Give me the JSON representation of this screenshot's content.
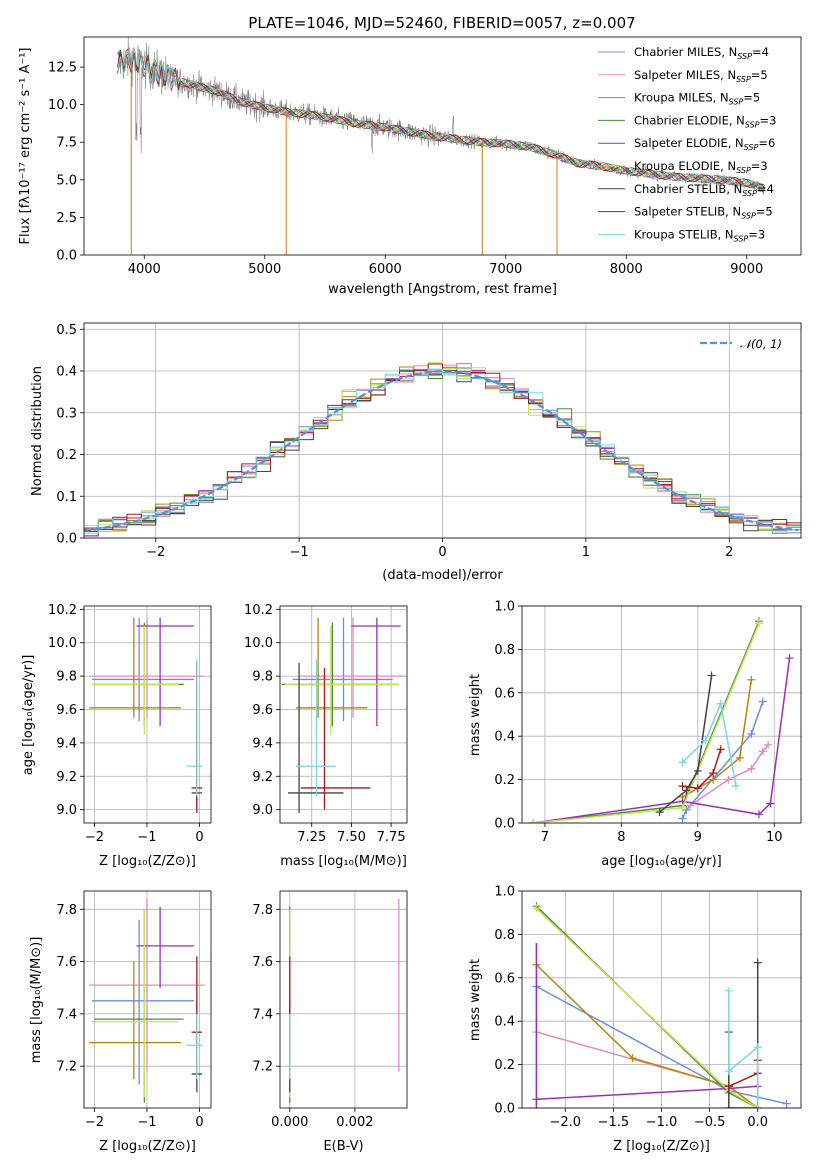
{
  "title": "PLATE=1046, MJD=52460, FIBERID=0057, z=0.007",
  "colors": {
    "Chabrier MILES": "#6a8fdc",
    "Salpeter MILES": "#e48bbd",
    "Kroupa MILES": "#b8860b",
    "Chabrier ELODIE": "#4b8b3b",
    "Salpeter ELODIE": "#9b30b5",
    "Kroupa ELODIE": "#c6e05a",
    "Chabrier STELIB": "#444444",
    "Salpeter STELIB": "#b01818",
    "Kroupa STELIB": "#7ad8e0",
    "data": "#808080",
    "orange": "#e07820"
  },
  "chart_data": [
    {
      "id": "spectrum",
      "type": "line",
      "title": "PLATE=1046, MJD=52460, FIBERID=0057, z=0.007",
      "xlabel": "wavelength [Angstrom, rest frame]",
      "ylabel": "Flux [fλ10⁻¹⁷ erg cm⁻² s⁻¹ A⁻¹]",
      "xlim": [
        3500,
        9450
      ],
      "ylim": [
        0,
        14.5
      ],
      "xticks": [
        4000,
        5000,
        6000,
        7000,
        8000,
        9000
      ],
      "yticks": [
        0.0,
        2.5,
        5.0,
        7.5,
        10.0,
        12.5
      ],
      "legend_position": "upper right",
      "legend": [
        {
          "label": "Chabrier MILES, N",
          "sub": "SSP",
          "suffix": "=4"
        },
        {
          "label": "Salpeter MILES, N",
          "sub": "SSP",
          "suffix": "=5"
        },
        {
          "label": "Kroupa MILES, N",
          "sub": "SSP",
          "suffix": "=5"
        },
        {
          "label": "Chabrier ELODIE, N",
          "sub": "SSP",
          "suffix": "=3"
        },
        {
          "label": "Salpeter ELODIE, N",
          "sub": "SSP",
          "suffix": "=6"
        },
        {
          "label": "Kroupa ELODIE, N",
          "sub": "SSP",
          "suffix": "=3"
        },
        {
          "label": "Chabrier STELIB, N",
          "sub": "SSP",
          "suffix": "=4"
        },
        {
          "label": "Salpeter STELIB, N",
          "sub": "SSP",
          "suffix": "=5"
        },
        {
          "label": "Kroupa STELIB, N",
          "sub": "SSP",
          "suffix": "=3"
        }
      ],
      "continuum_x": [
        3800,
        3900,
        4000,
        4200,
        4400,
        4600,
        4800,
        5000,
        5200,
        5400,
        5600,
        5800,
        6000,
        6200,
        6400,
        6600,
        6800,
        7000,
        7200,
        7400,
        7600,
        7800,
        8000,
        8200,
        8400,
        8600,
        8800,
        9000,
        9150
      ],
      "continuum_y": [
        12.8,
        13.0,
        12.6,
        11.8,
        11.3,
        10.9,
        10.2,
        9.8,
        9.5,
        9.3,
        9.0,
        8.7,
        8.5,
        8.2,
        7.9,
        7.7,
        7.5,
        7.4,
        7.2,
        6.7,
        6.1,
        5.9,
        5.6,
        5.4,
        5.2,
        5.1,
        5.0,
        4.8,
        4.4
      ]
    },
    {
      "id": "residuals",
      "type": "step-histogram",
      "xlabel": "(data-model)/error",
      "ylabel": "Normed distribution",
      "xlim": [
        -2.5,
        2.5
      ],
      "ylim": [
        0,
        0.515
      ],
      "xticks": [
        -2,
        -1,
        0,
        1,
        2
      ],
      "yticks": [
        0.0,
        0.1,
        0.2,
        0.3,
        0.4,
        0.5
      ],
      "legend": [
        {
          "label": "𝒩(0, 1)"
        }
      ],
      "reference_curve": "normal(0,1)"
    },
    {
      "id": "age-vs-Z",
      "type": "errorbar",
      "xlabel": "Z [log₁₀(Z/Z⊙)]",
      "ylabel": "age  [log₁₀(age/yr)]",
      "xlim": [
        -2.2,
        0.22
      ],
      "ylim": [
        8.92,
        10.22
      ],
      "xticks": [
        -2,
        -1,
        0
      ],
      "yticks": [
        9.0,
        9.2,
        9.4,
        9.6,
        9.8,
        10.0,
        10.2
      ]
    },
    {
      "id": "age-vs-mass",
      "type": "errorbar",
      "xlabel": "mass [log₁₀(M/M⊙)]",
      "xlim": [
        7.05,
        7.85
      ],
      "ylim": [
        8.92,
        10.22
      ],
      "xticks": [
        7.25,
        7.5,
        7.75
      ],
      "yticks": [
        9.0,
        9.2,
        9.4,
        9.6,
        9.8,
        10.0,
        10.2
      ]
    },
    {
      "id": "weight-vs-age",
      "type": "line",
      "xlabel": "age  [log₁₀(age/yr)]",
      "ylabel": "mass weight",
      "xlim": [
        6.7,
        10.35
      ],
      "ylim": [
        0,
        1
      ],
      "xticks": [
        7,
        8,
        9,
        10
      ],
      "yticks": [
        0.0,
        0.2,
        0.4,
        0.6,
        0.8,
        1.0
      ]
    },
    {
      "id": "mass-vs-Z",
      "type": "errorbar",
      "xlabel": "Z [log₁₀(Z/Z⊙)]",
      "ylabel": "mass [log₁₀(M/M⊙)]",
      "xlim": [
        -2.2,
        0.22
      ],
      "ylim": [
        7.04,
        7.87
      ],
      "xticks": [
        -2,
        -1,
        0
      ],
      "yticks": [
        7.2,
        7.4,
        7.6,
        7.8
      ]
    },
    {
      "id": "mass-vs-ebv",
      "type": "errorbar",
      "xlabel": "E(B-V)",
      "xlim": [
        -0.0003,
        0.0036
      ],
      "ylim": [
        7.04,
        7.87
      ],
      "xticks": [
        0.0,
        0.002
      ],
      "yticks": [
        7.2,
        7.4,
        7.6,
        7.8
      ]
    },
    {
      "id": "weight-vs-Z",
      "type": "line",
      "xlabel": "Z [log₁₀(Z/Z⊙)]",
      "ylabel": "mass weight",
      "xlim": [
        -2.45,
        0.45
      ],
      "ylim": [
        0,
        1
      ],
      "xticks": [
        -2.0,
        -1.5,
        -1.0,
        -0.5,
        0.0
      ],
      "yticks": [
        0.0,
        0.2,
        0.4,
        0.6,
        0.8,
        1.0
      ]
    }
  ],
  "legend_sub_label": "SSP"
}
